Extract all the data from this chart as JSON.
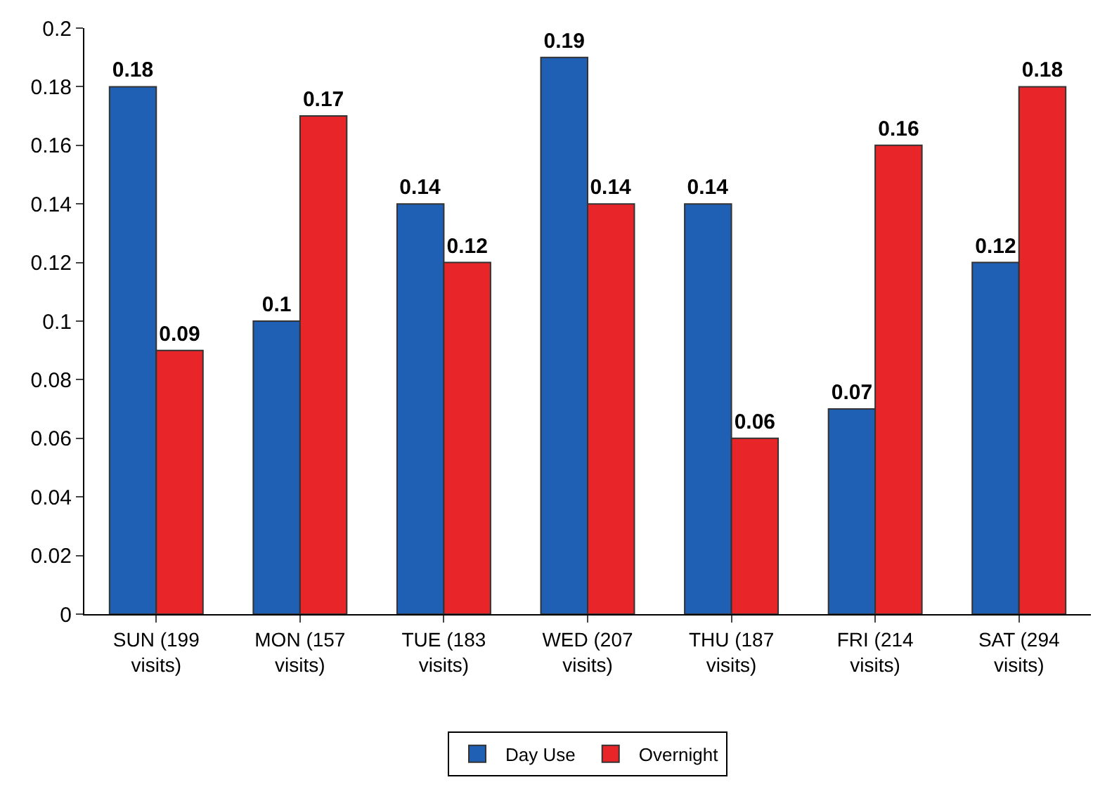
{
  "chart_data": {
    "type": "bar",
    "categories": [
      "SUN (199 visits)",
      "MON (157 visits)",
      "TUE (183 visits)",
      "WED (207 visits)",
      "THU (187 visits)",
      "FRI (214 visits)",
      "SAT (294 visits)"
    ],
    "series": [
      {
        "name": "Day Use",
        "color": "#1f5fb4",
        "values": [
          0.18,
          0.1,
          0.14,
          0.19,
          0.14,
          0.07,
          0.12
        ]
      },
      {
        "name": "Overnight",
        "color": "#e8262a",
        "values": [
          0.09,
          0.17,
          0.12,
          0.14,
          0.06,
          0.16,
          0.18
        ]
      }
    ],
    "ylim": [
      0,
      0.2
    ],
    "yticks": [
      0,
      0.02,
      0.04,
      0.06,
      0.08,
      0.1,
      0.12,
      0.14,
      0.16,
      0.18,
      0.2
    ],
    "data_labels": true,
    "grid": false,
    "legend": "bottom"
  }
}
